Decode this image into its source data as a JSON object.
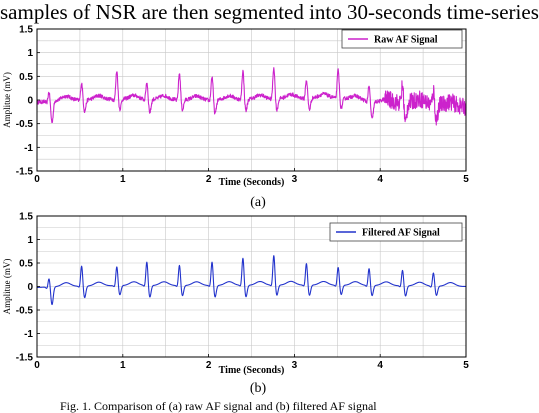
{
  "captions": {
    "top": "samples of NSR are then segmented into 30-seconds time-series",
    "bottom": "Fig. 1. Comparison of (a) raw AF signal and (b) filtered AF signal",
    "sub_a": "(a)",
    "sub_b": "(b)"
  },
  "colors": {
    "raw": "#cc22cc",
    "filtered": "#2233cc",
    "grid": "#c8c8c8"
  },
  "chart_data": [
    {
      "type": "line",
      "title": "",
      "xlabel": "Time (Seconds)",
      "ylabel": "Amplitue (mV)",
      "xlim": [
        0,
        5
      ],
      "ylim": [
        -1.5,
        1.5
      ],
      "xticks": [
        "0",
        "1",
        "2",
        "3",
        "4",
        "5"
      ],
      "yticks": [
        "1.5",
        "1",
        "0.5",
        "0",
        "-0.5",
        "-1",
        "-1.5"
      ],
      "grid": true,
      "legend": "top-right",
      "series": [
        {
          "name": "Raw AF Signal",
          "color": "#cc22cc",
          "beats": [
            0.14,
            0.52,
            0.93,
            1.28,
            1.66,
            2.04,
            2.4,
            2.76,
            3.14,
            3.51,
            3.87,
            4.26,
            4.62
          ],
          "peaks": [
            0.22,
            0.37,
            0.62,
            0.38,
            0.58,
            0.52,
            0.62,
            0.68,
            0.4,
            0.6,
            0.33,
            0.38,
            0.3
          ],
          "troughs": [
            -0.45,
            -0.25,
            -0.22,
            -0.28,
            -0.22,
            -0.3,
            -0.25,
            -0.25,
            -0.25,
            -0.22,
            -0.38,
            -0.45,
            -0.35
          ],
          "baseline": [
            [
              0,
              -0.05
            ],
            [
              0.3,
              0.0
            ],
            [
              1.0,
              0.02
            ],
            [
              2.0,
              0.0
            ],
            [
              3.0,
              0.04
            ],
            [
              3.5,
              0.05
            ],
            [
              4.0,
              -0.05
            ],
            [
              4.4,
              -0.05
            ],
            [
              5.0,
              -0.15
            ]
          ],
          "noise": 0.04,
          "noisy_segment": [
            4.05,
            5.0
          ]
        }
      ]
    },
    {
      "type": "line",
      "title": "",
      "xlabel": "Time (Seconds)",
      "ylabel": "Amplitue (mV)",
      "xlim": [
        0,
        5
      ],
      "ylim": [
        -1.5,
        1.5
      ],
      "xticks": [
        "0",
        "1",
        "2",
        "3",
        "4",
        "5"
      ],
      "yticks": [
        "1.5",
        "1",
        "0.5",
        "0",
        "-0.5",
        "-1",
        "-1.5"
      ],
      "grid": true,
      "legend": "top-right",
      "series": [
        {
          "name": "Filtered AF Signal",
          "color": "#2233cc",
          "beats": [
            0.14,
            0.52,
            0.93,
            1.28,
            1.66,
            2.04,
            2.4,
            2.76,
            3.14,
            3.51,
            3.87,
            4.26,
            4.62
          ],
          "peaks": [
            0.2,
            0.45,
            0.42,
            0.52,
            0.45,
            0.52,
            0.6,
            0.65,
            0.48,
            0.4,
            0.38,
            0.35,
            0.3
          ],
          "troughs": [
            -0.38,
            -0.25,
            -0.2,
            -0.25,
            -0.22,
            -0.25,
            -0.25,
            -0.22,
            -0.22,
            -0.2,
            -0.22,
            -0.22,
            -0.2
          ],
          "baseline": [
            [
              0,
              -0.02
            ],
            [
              0.3,
              0.0
            ],
            [
              1.0,
              0.02
            ],
            [
              2.0,
              0.02
            ],
            [
              3.0,
              0.03
            ],
            [
              4.0,
              0.02
            ],
            [
              5.0,
              0.0
            ]
          ],
          "noise": 0.0,
          "noisy_segment": null
        }
      ]
    }
  ]
}
